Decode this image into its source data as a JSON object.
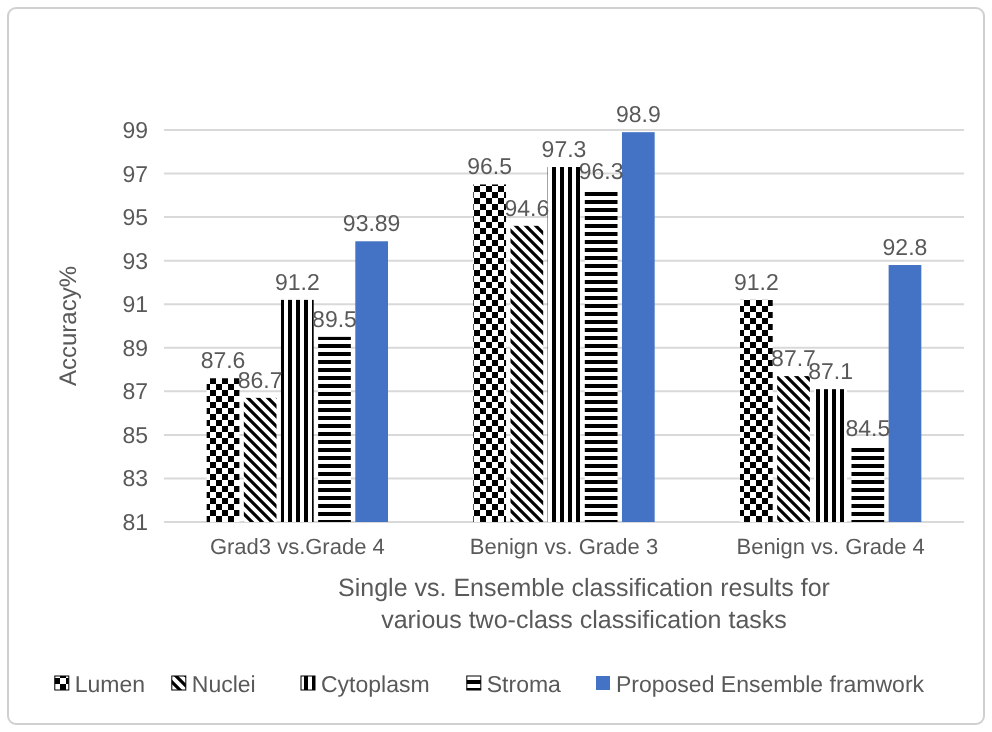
{
  "chart_data": {
    "type": "bar",
    "xlabel": "Single  vs. Ensemble classification results for various two-class classification tasks",
    "ylabel": "Accuracy%",
    "categories": [
      "Grad3 vs.Grade 4",
      "Benign vs. Grade 3",
      "Benign vs. Grade 4"
    ],
    "series": [
      {
        "name": "Lumen",
        "color": "#000000",
        "values": [
          87.6,
          96.5,
          91.2
        ]
      },
      {
        "name": "Nuclei",
        "color": "#000000",
        "values": [
          86.7,
          94.6,
          87.7
        ]
      },
      {
        "name": "Cytoplasm",
        "color": "#000000",
        "values": [
          91.2,
          97.3,
          87.1
        ]
      },
      {
        "name": "Stroma",
        "color": "#000000",
        "values": [
          89.5,
          96.3,
          84.5
        ]
      },
      {
        "name": "Proposed Ensemble framwork",
        "color": "#4472c4",
        "values": [
          93.89,
          98.9,
          92.8
        ]
      }
    ],
    "ylim": [
      81,
      99
    ],
    "yticks": [
      81,
      83,
      85,
      87,
      89,
      91,
      93,
      95,
      97,
      99
    ],
    "grid": "y",
    "legend": "bottom",
    "data_labels": true
  }
}
